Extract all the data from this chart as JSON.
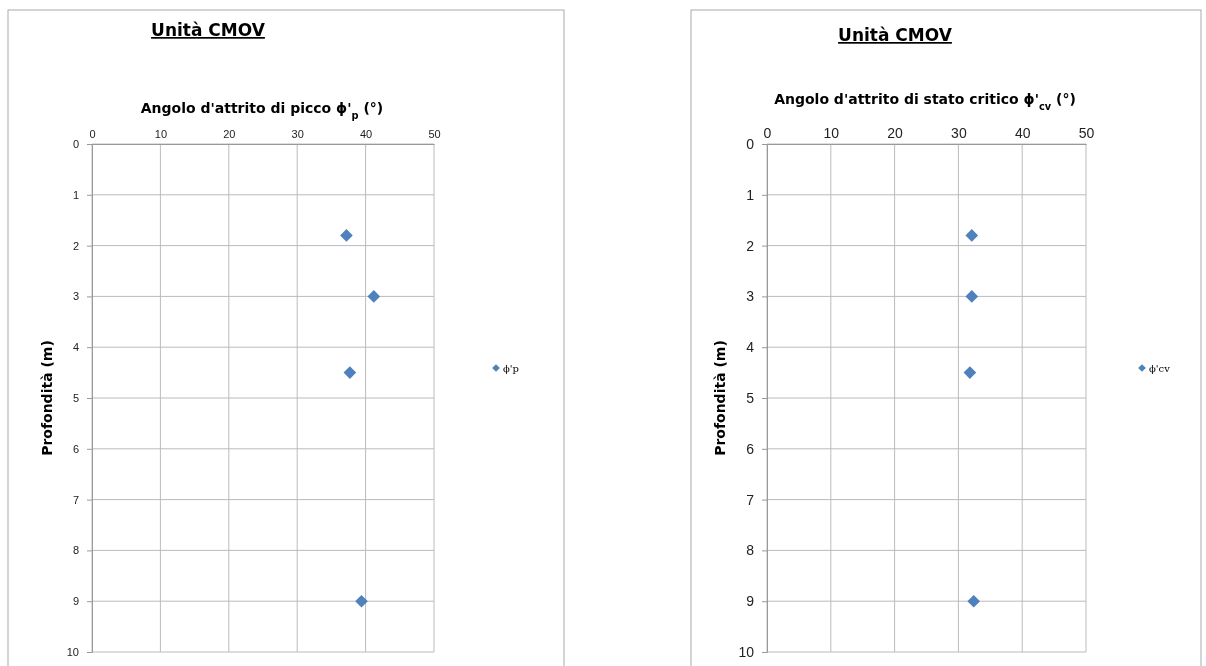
{
  "chart_data": [
    {
      "type": "scatter",
      "title": "Unità CMOV",
      "xlabel": "Angolo d'attrito di picco ϕ'$_{p}$ (°)",
      "ylabel": "Profondità (m)",
      "xlim": [
        0,
        50
      ],
      "xticks": [
        0,
        10,
        20,
        30,
        40,
        50
      ],
      "ylim": [
        10,
        0
      ],
      "yticks": [
        0,
        1,
        2,
        3,
        4,
        5,
        6,
        7,
        8,
        9,
        10
      ],
      "grid": true,
      "legend": "right",
      "marker": "diamond",
      "series": [
        {
          "name": "ϕ'p",
          "color": "#4f81bd",
          "x": [
            37.2,
            41.2,
            37.7,
            39.4
          ],
          "values": [
            1.8,
            3,
            4.5,
            9
          ]
        }
      ]
    },
    {
      "type": "scatter",
      "title": "Unità CMOV",
      "xlabel": "Angolo d'attrito di stato critico  ϕ'$_{cv}$ (°)",
      "ylabel": "Profondità (m)",
      "xlim": [
        0,
        50
      ],
      "xticks": [
        0,
        10,
        20,
        30,
        40,
        50
      ],
      "ylim": [
        10,
        0
      ],
      "yticks": [
        0,
        1,
        2,
        3,
        4,
        5,
        6,
        7,
        8,
        9,
        10
      ],
      "grid": true,
      "legend": "right",
      "marker": "diamond",
      "series": [
        {
          "name": "ϕ'cv",
          "color": "#4f81bd",
          "x": [
            32.1,
            32.1,
            31.8,
            32.4
          ],
          "values": [
            1.8,
            3,
            4.5,
            9
          ]
        }
      ]
    }
  ]
}
